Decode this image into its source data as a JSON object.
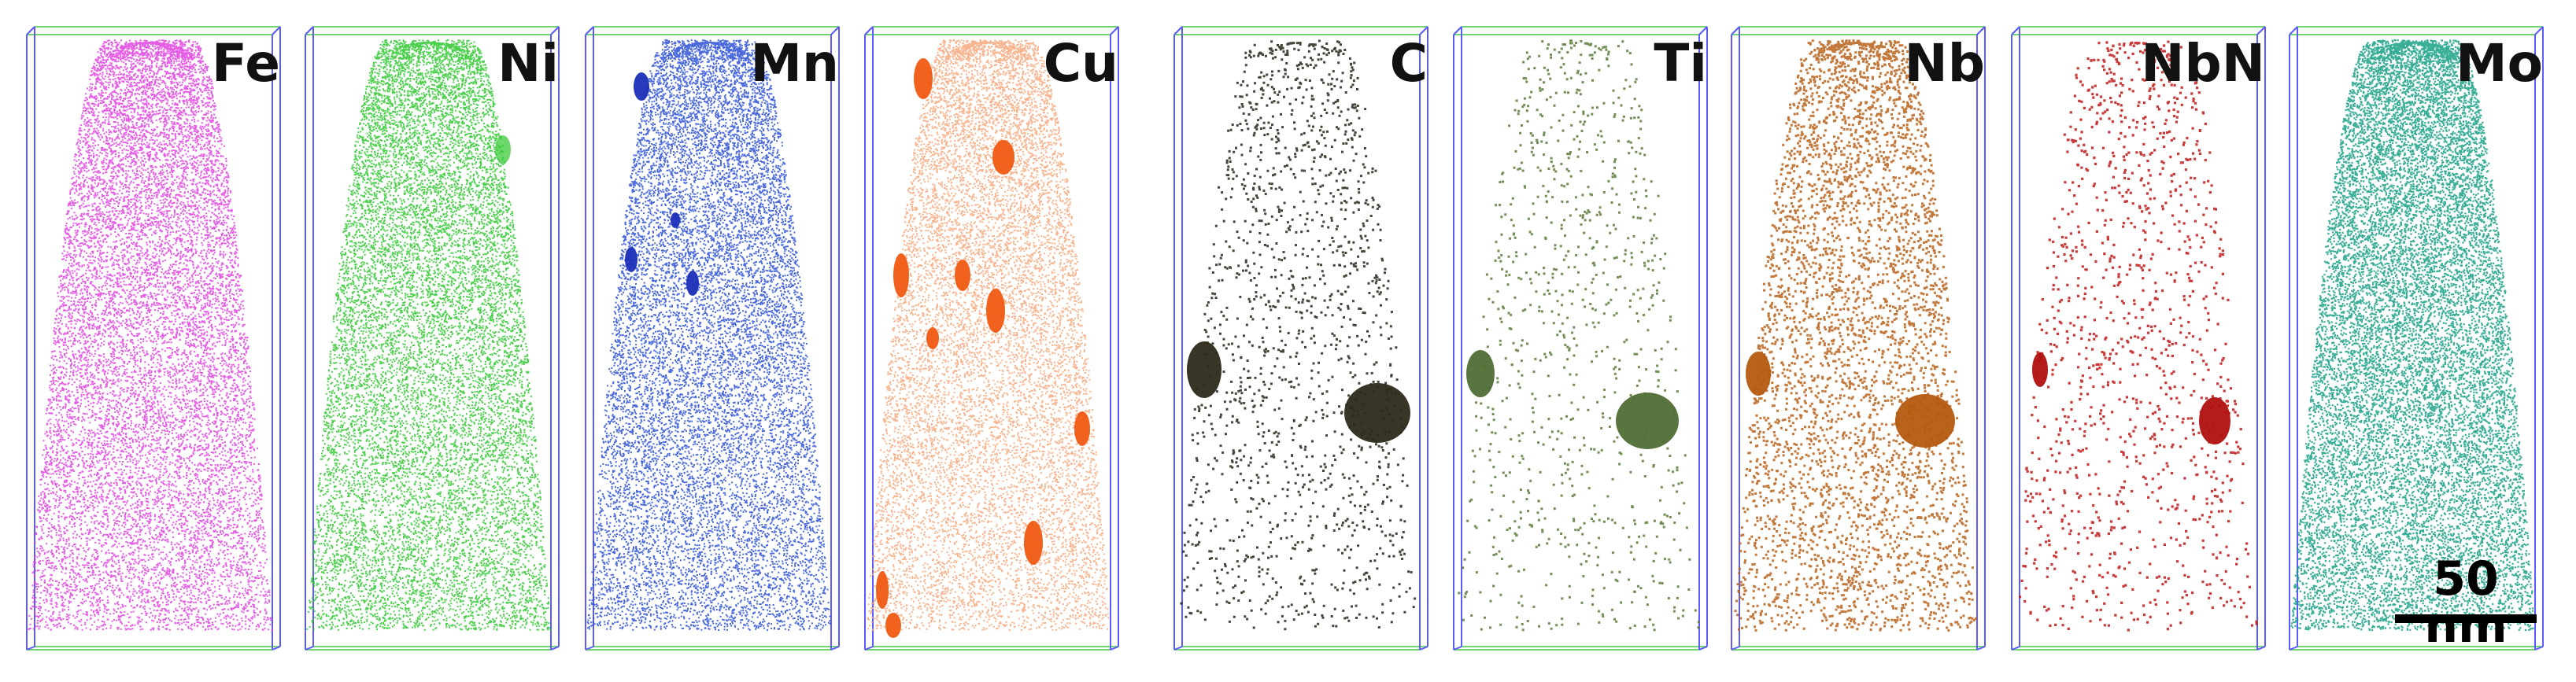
{
  "panels": [
    {
      "id": "fe",
      "label": "Fe",
      "color": "#e040e0",
      "density": 14000,
      "dot": 2.0
    },
    {
      "id": "ni",
      "label": "Ni",
      "color": "#2ec82e",
      "density": 14000,
      "dot": 2.0
    },
    {
      "id": "mn",
      "label": "Mn",
      "color": "#2a4fd6",
      "density": 14000,
      "dot": 2.0
    },
    {
      "id": "cu",
      "label": "Cu",
      "color": "#f7a77a",
      "density": 12000,
      "dot": 2.0
    },
    {
      "id": "c",
      "label": "C",
      "color": "#262418",
      "density": 1500,
      "dot": 3.0
    },
    {
      "id": "ti",
      "label": "Ti",
      "color": "#5a7a3a",
      "density": 900,
      "dot": 3.0
    },
    {
      "id": "nb",
      "label": "Nb",
      "color": "#b8621a",
      "density": 4200,
      "dot": 3.0
    },
    {
      "id": "nbn",
      "label": "NbN",
      "color": "#c01818",
      "density": 1200,
      "dot": 3.2
    },
    {
      "id": "mo",
      "label": "Mo",
      "color": "#16a085",
      "density": 16000,
      "dot": 2.2
    }
  ],
  "scalebar": {
    "label": "50 nm"
  },
  "colors": {
    "box_green": "#6fd66f",
    "box_blue": "#5a5aff",
    "cluster_cu": "#f05a12",
    "cluster_c": "#2e2a1a",
    "cluster_ti": "#4f6e35",
    "cluster_nb": "#b45a10",
    "cluster_mn": "#1b2fb8",
    "cluster_nbn": "#b01010"
  }
}
